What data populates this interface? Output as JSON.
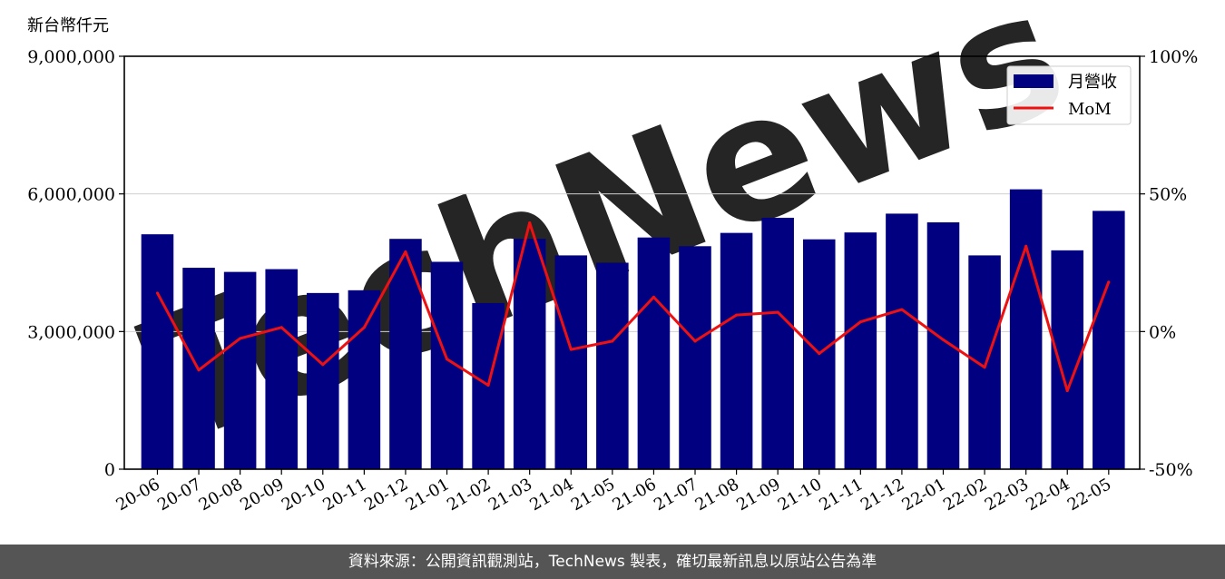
{
  "colors": {
    "bar": "#000080",
    "line": "#ee1111",
    "grid": "#d0d0d0",
    "footer_bg": "#555555",
    "watermark": "#f3dada"
  },
  "watermark_text": "TechNews",
  "footer_text": "資料來源：公開資訊觀測站，TechNews 製表，確切最新訊息以原站公告為準",
  "chart_data": {
    "type": "bar",
    "y_unit_label": "新台幣仟元",
    "categories": [
      "20-06",
      "20-07",
      "20-08",
      "20-09",
      "20-10",
      "20-11",
      "20-12",
      "21-01",
      "21-02",
      "21-03",
      "21-04",
      "21-05",
      "21-06",
      "21-07",
      "21-08",
      "21-09",
      "21-10",
      "21-11",
      "21-12",
      "22-01",
      "22-02",
      "22-03",
      "22-04",
      "22-05"
    ],
    "series": [
      {
        "name": "月營收",
        "type": "bar",
        "axis": "left",
        "values": [
          5120000,
          4390000,
          4300000,
          4360000,
          3840000,
          3900000,
          5020000,
          4520000,
          3620000,
          5020000,
          4660000,
          4500000,
          5050000,
          4860000,
          5150000,
          5480000,
          5010000,
          5160000,
          5570000,
          5380000,
          4660000,
          6100000,
          4770000,
          5630000
        ]
      },
      {
        "name": "MoM",
        "type": "line",
        "axis": "right",
        "unit": "%",
        "values": [
          14,
          -14,
          -2.5,
          1.5,
          -12,
          1.5,
          29,
          -10,
          -19.5,
          39.5,
          -6.5,
          -3.5,
          12.5,
          -3.5,
          6,
          7,
          -8,
          3.5,
          8,
          -3,
          -13,
          31,
          -21.5,
          18
        ]
      }
    ],
    "ylim_left": [
      0,
      9000000
    ],
    "yticks_left": [
      "0",
      "3,000,000",
      "6,000,000",
      "9,000,000"
    ],
    "ylim_right": [
      -50,
      100
    ],
    "yticks_right": [
      "-50%",
      "0%",
      "50%",
      "100%"
    ],
    "grid": "horizontal",
    "legend_position": "top-right"
  }
}
